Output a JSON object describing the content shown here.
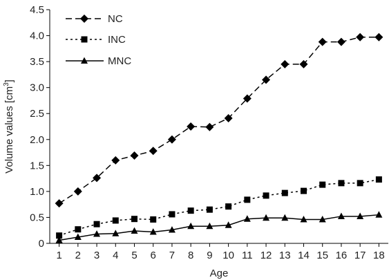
{
  "chart_data": {
    "type": "line",
    "title": "",
    "xlabel": "Age",
    "ylabel": "Volume values [cm³]",
    "ylabel_parts": {
      "text": "Volume values [cm",
      "sup": "3",
      "close": "]"
    },
    "x": [
      1,
      2,
      3,
      4,
      5,
      6,
      7,
      8,
      9,
      10,
      11,
      12,
      13,
      14,
      15,
      16,
      17,
      18
    ],
    "xlim": [
      0.5,
      18.5
    ],
    "ylim": [
      0,
      4.5
    ],
    "yticks": [
      "0",
      "0.5",
      "1.0",
      "1.5",
      "2.0",
      "2.5",
      "3.0",
      "3.5",
      "4.0",
      "4.5"
    ],
    "grid": false,
    "legend_position": "top-left",
    "series": [
      {
        "name": "NC",
        "marker": "diamond",
        "line_style": "dashed",
        "color": "#000000",
        "values": [
          0.77,
          1.0,
          1.26,
          1.6,
          1.69,
          1.78,
          2.0,
          2.25,
          2.24,
          2.41,
          2.79,
          3.15,
          3.45,
          3.45,
          3.88,
          3.88,
          3.97,
          3.97
        ]
      },
      {
        "name": "INC",
        "marker": "square",
        "line_style": "dotted",
        "color": "#000000",
        "values": [
          0.15,
          0.27,
          0.37,
          0.44,
          0.47,
          0.46,
          0.56,
          0.63,
          0.65,
          0.71,
          0.84,
          0.92,
          0.97,
          1.01,
          1.13,
          1.16,
          1.16,
          1.23
        ]
      },
      {
        "name": "MNC",
        "marker": "triangle",
        "line_style": "solid",
        "color": "#000000",
        "values": [
          0.06,
          0.12,
          0.18,
          0.19,
          0.24,
          0.22,
          0.26,
          0.33,
          0.33,
          0.35,
          0.47,
          0.49,
          0.49,
          0.46,
          0.46,
          0.52,
          0.52,
          0.55
        ]
      }
    ]
  }
}
